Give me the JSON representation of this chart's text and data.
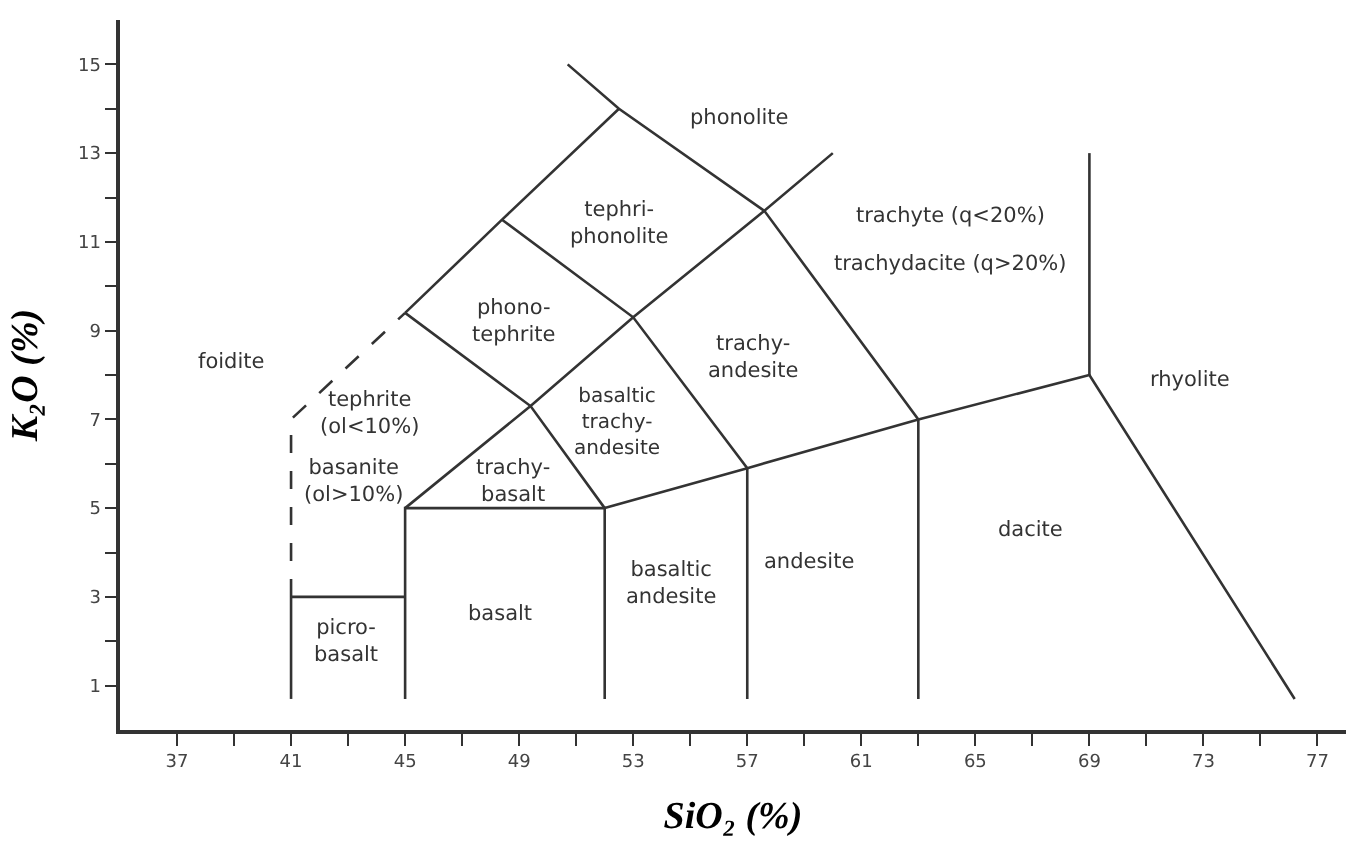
{
  "chart_data": {
    "type": "line",
    "xlabel": "SiO₂ (%)",
    "ylabel": "K₂O (%)",
    "marker": "none",
    "xlim": [
      35,
      78
    ],
    "ylim": [
      0,
      16
    ],
    "xticks": [
      37,
      {
        "value": 39,
        "label": null
      },
      41,
      {
        "value": 43,
        "label": null
      },
      45,
      {
        "value": 47,
        "label": null
      },
      49,
      {
        "value": 51,
        "label": null
      },
      53,
      {
        "value": 55,
        "label": null
      },
      57,
      {
        "value": 59,
        "label": null
      },
      61,
      {
        "value": 63,
        "label": null
      },
      65,
      {
        "value": 67,
        "label": null
      },
      69,
      {
        "value": 71,
        "label": null
      },
      73,
      {
        "value": 75,
        "label": null
      },
      77
    ],
    "yticks": [
      1,
      {
        "value": 2,
        "label": null
      },
      3,
      {
        "value": 4,
        "label": null
      },
      5,
      {
        "value": 6,
        "label": null
      },
      7,
      {
        "value": 8,
        "label": null
      },
      9,
      {
        "value": 10,
        "label": null
      },
      11,
      {
        "value": 12,
        "label": null
      },
      13,
      {
        "value": 14,
        "label": null
      },
      15
    ],
    "series": [
      {
        "color": "#333333",
        "x": [
          41,
          41
        ],
        "values": [
          0.7,
          3
        ]
      },
      {
        "color": "#333333",
        "line_style": "dashed",
        "x": [
          41,
          41,
          45
        ],
        "values": [
          3,
          7,
          9.4
        ]
      },
      {
        "color": "#333333",
        "x": [
          41,
          45
        ],
        "values": [
          3,
          3
        ]
      },
      {
        "color": "#333333",
        "x": [
          45,
          45,
          52,
          52
        ],
        "values": [
          0.7,
          5,
          5,
          0.7
        ]
      },
      {
        "color": "#333333",
        "x": [
          45,
          49.4,
          53,
          57.6,
          60
        ],
        "values": [
          5,
          7.3,
          9.3,
          11.7,
          13
        ]
      },
      {
        "color": "#333333",
        "x": [
          45,
          48.4,
          52.5
        ],
        "values": [
          9.4,
          11.5,
          14
        ]
      },
      {
        "color": "#333333",
        "x": [
          50.7,
          52.5,
          57.6,
          63,
          63
        ],
        "values": [
          15,
          14,
          11.7,
          7,
          0.7
        ]
      },
      {
        "color": "#333333",
        "x": [
          45,
          49.4,
          52
        ],
        "values": [
          9.4,
          7.3,
          5
        ]
      },
      {
        "color": "#333333",
        "x": [
          48.4,
          53,
          57,
          57
        ],
        "values": [
          11.5,
          9.3,
          5.9,
          0.7
        ]
      },
      {
        "color": "#333333",
        "x": [
          52,
          57,
          63,
          69,
          76.2
        ],
        "values": [
          5,
          5.9,
          7,
          8,
          0.7
        ]
      },
      {
        "color": "#333333",
        "x": [
          69,
          69
        ],
        "values": [
          8,
          13
        ]
      }
    ],
    "annotations": [
      "foidite",
      "tephrite\n(ol<10%)",
      "basanite\n(ol>10%)",
      "picro-\nbasalt",
      "basalt",
      "trachy-\nbasalt",
      "basaltic\ntrachy-\nandesite",
      "phono-\ntephrite",
      "tephri-\nphonolite",
      "phonolite",
      "trachy-\nandesite",
      "trachyte (q<20%)",
      "trachydacite (q>20%)",
      "rhyolite",
      "basaltic\nandesite",
      "andesite",
      "dacite"
    ]
  }
}
